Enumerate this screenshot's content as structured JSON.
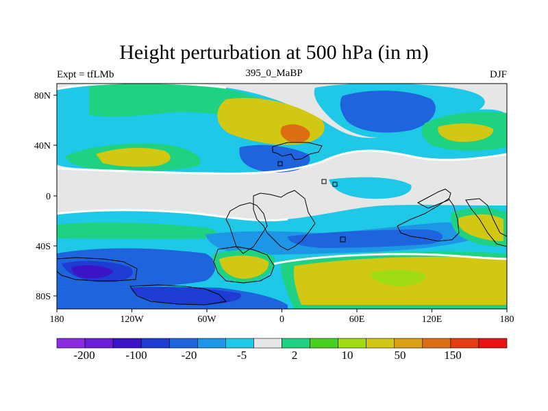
{
  "header": {
    "title": "Height perturbation at 500 hPa (in m)",
    "left_label": "Expt = tfLMb",
    "center_label": "395_0_MaBP",
    "right_label": "DJF"
  },
  "axes": {
    "x_ticks": [
      "180",
      "120W",
      "60W",
      "0",
      "60E",
      "120E",
      "180"
    ],
    "y_ticks": [
      "80N",
      "40N",
      "0",
      "40S",
      "80S"
    ]
  },
  "colorbar": {
    "colors": [
      "#8a2be2",
      "#6a1ed8",
      "#3c14c8",
      "#1e3cd2",
      "#1e64dc",
      "#1e96e6",
      "#1ec8e6",
      "#e6e6e6",
      "#1ed282",
      "#46d21e",
      "#a0dc14",
      "#d2c814",
      "#dca014",
      "#dc6e14",
      "#e63c14",
      "#e61414"
    ],
    "labels": [
      "-200",
      "-100",
      "-20",
      "-5",
      "2",
      "10",
      "50",
      "150"
    ]
  },
  "field_colors": {
    "neutral": "#e6e6e6",
    "cyan": "#1ec8e6",
    "light_blue": "#1e96e6",
    "blue": "#1e64dc",
    "dark_blue": "#1e3cd2",
    "deep_blue": "#3c14c8",
    "green": "#1ed282",
    "lime": "#a0dc14",
    "yellow": "#d2c814",
    "orange": "#dc6e14",
    "white": "#ffffff"
  }
}
